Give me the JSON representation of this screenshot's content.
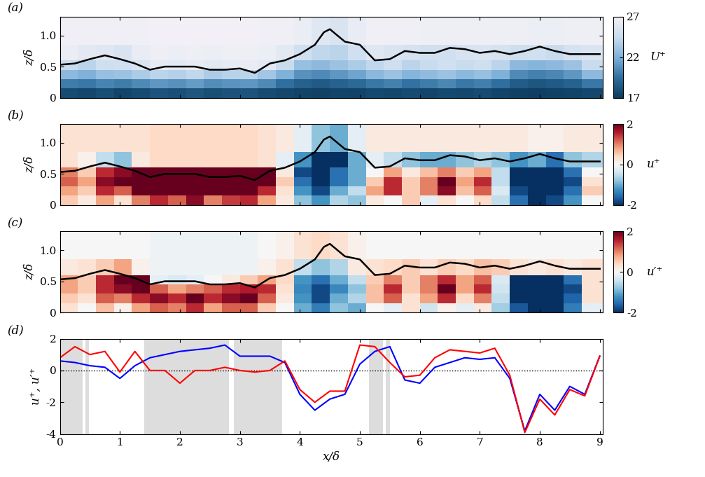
{
  "chart_data": [
    {
      "type": "heatmap",
      "panel": "(a)",
      "ylabel": "z/δ",
      "tick_labels": "y",
      "xlim": [
        0,
        9.05
      ],
      "xticks": [
        0,
        1,
        2,
        3,
        4,
        5,
        6,
        7,
        8,
        9
      ],
      "ylim": [
        0,
        1.3
      ],
      "yticks": [
        0,
        0.5,
        1.0
      ],
      "x_edges": [
        0,
        0.3,
        0.6,
        0.9,
        1.2,
        1.5,
        1.8,
        2.1,
        2.4,
        2.7,
        3.0,
        3.3,
        3.6,
        3.9,
        4.2,
        4.5,
        4.8,
        5.1,
        5.4,
        5.7,
        6.0,
        6.3,
        6.6,
        6.9,
        7.2,
        7.5,
        7.8,
        8.1,
        8.4,
        8.7,
        9.05
      ],
      "y_edges": [
        0,
        0.15,
        0.3,
        0.45,
        0.6,
        0.85,
        1.3
      ],
      "cells": [
        [
          17.8,
          17.6,
          17.9,
          17.5,
          17.8,
          18.2,
          18.0,
          18.3,
          17.9,
          18.1,
          18.2,
          17.8,
          17.6,
          17.4,
          17.3,
          17.5,
          17.4,
          17.7,
          17.6,
          17.8,
          17.5,
          17.7,
          17.6,
          17.8,
          17.5,
          17.3,
          17.2,
          17.3,
          17.4,
          17.6
        ],
        [
          20.0,
          19.8,
          20.3,
          20.0,
          20.5,
          21.0,
          20.8,
          21.2,
          20.6,
          20.9,
          21.0,
          20.5,
          19.5,
          18.8,
          18.5,
          18.9,
          19.2,
          19.8,
          20.2,
          19.6,
          20.0,
          20.4,
          19.8,
          20.1,
          19.5,
          18.6,
          18.3,
          18.5,
          18.9,
          19.8
        ],
        [
          22.5,
          22.0,
          22.8,
          23.0,
          23.5,
          24.0,
          23.8,
          24.2,
          23.6,
          23.9,
          24.0,
          23.2,
          22.0,
          20.8,
          20.5,
          21.0,
          21.5,
          22.4,
          23.0,
          22.2,
          22.6,
          23.0,
          22.4,
          22.8,
          22.0,
          20.5,
          20.2,
          20.4,
          21.0,
          22.5
        ],
        [
          24.5,
          24.0,
          24.8,
          25.0,
          25.5,
          26.2,
          26.0,
          26.3,
          26.0,
          26.2,
          26.4,
          26.0,
          24.5,
          22.8,
          22.5,
          23.0,
          23.5,
          24.2,
          24.8,
          24.0,
          24.5,
          25.0,
          24.5,
          24.8,
          24.0,
          22.5,
          22.2,
          22.5,
          23.0,
          24.5
        ],
        [
          26.5,
          26.0,
          25.8,
          25.5,
          26.4,
          26.7,
          26.6,
          26.7,
          26.6,
          26.7,
          26.7,
          26.6,
          26.0,
          25.0,
          24.2,
          24.0,
          25.0,
          25.8,
          25.5,
          25.2,
          25.0,
          25.0,
          25.3,
          25.5,
          25.2,
          24.8,
          25.0,
          24.5,
          25.2,
          25.5
        ],
        [
          26.8,
          26.8,
          26.8,
          26.8,
          26.8,
          26.9,
          26.9,
          26.9,
          26.9,
          26.9,
          26.9,
          26.8,
          26.8,
          26.5,
          25.8,
          25.5,
          26.4,
          26.8,
          26.8,
          26.8,
          26.7,
          26.7,
          26.7,
          26.7,
          26.7,
          26.7,
          26.6,
          26.6,
          26.7,
          26.7
        ]
      ],
      "colorbar": {
        "label": "U⁺",
        "range": [
          17,
          27
        ],
        "ticks": [
          17,
          22,
          27
        ]
      },
      "contour": {
        "color": "#000000",
        "x": [
          0,
          0.25,
          0.5,
          0.75,
          1.0,
          1.25,
          1.5,
          1.75,
          2.0,
          2.25,
          2.5,
          2.75,
          3.0,
          3.25,
          3.5,
          3.75,
          4.0,
          4.25,
          4.4,
          4.5,
          4.75,
          5.0,
          5.25,
          5.5,
          5.75,
          6.0,
          6.25,
          6.5,
          6.75,
          7.0,
          7.25,
          7.5,
          7.75,
          8.0,
          8.25,
          8.5,
          8.75,
          9.0
        ],
        "y": [
          0.53,
          0.55,
          0.62,
          0.68,
          0.62,
          0.55,
          0.45,
          0.5,
          0.5,
          0.5,
          0.45,
          0.45,
          0.47,
          0.4,
          0.55,
          0.6,
          0.7,
          0.85,
          1.05,
          1.1,
          0.9,
          0.85,
          0.6,
          0.62,
          0.75,
          0.72,
          0.72,
          0.8,
          0.78,
          0.72,
          0.75,
          0.7,
          0.75,
          0.82,
          0.75,
          0.7,
          0.7,
          0.7
        ]
      }
    },
    {
      "type": "heatmap",
      "panel": "(b)",
      "ylabel": "z/δ",
      "tick_labels": "y",
      "xlim": [
        0,
        9.05
      ],
      "xticks": [
        0,
        1,
        2,
        3,
        4,
        5,
        6,
        7,
        8,
        9
      ],
      "ylim": [
        0,
        1.3
      ],
      "yticks": [
        0,
        0.5,
        1.0
      ],
      "x_edges": [
        0,
        0.3,
        0.6,
        0.9,
        1.2,
        1.5,
        1.8,
        2.1,
        2.4,
        2.7,
        3.0,
        3.3,
        3.6,
        3.9,
        4.2,
        4.5,
        4.8,
        5.1,
        5.4,
        5.7,
        6.0,
        6.3,
        6.6,
        6.9,
        7.2,
        7.5,
        7.8,
        8.1,
        8.4,
        8.7,
        9.05
      ],
      "y_edges": [
        0,
        0.15,
        0.3,
        0.45,
        0.6,
        0.85,
        1.3
      ],
      "cells": [
        [
          0.5,
          0.2,
          0.8,
          0.3,
          1.0,
          1.5,
          1.2,
          1.8,
          1.0,
          1.4,
          1.5,
          0.8,
          0.2,
          -0.8,
          -1.2,
          -0.6,
          -0.8,
          0.2,
          0.0,
          0.5,
          -0.2,
          0.3,
          0.0,
          0.4,
          -0.5,
          -1.5,
          -2.0,
          -1.8,
          -1.2,
          0.0
        ],
        [
          0.8,
          0.5,
          1.5,
          1.2,
          2.0,
          2.5,
          2.2,
          2.8,
          2.0,
          2.5,
          2.6,
          1.5,
          0.3,
          -1.2,
          -1.8,
          -1.0,
          -0.5,
          0.8,
          1.5,
          0.5,
          1.0,
          1.8,
          0.6,
          1.2,
          -0.3,
          -1.8,
          -2.5,
          -2.2,
          -1.5,
          0.5
        ],
        [
          1.2,
          0.8,
          1.8,
          2.0,
          2.5,
          3.0,
          2.8,
          3.0,
          2.8,
          3.0,
          3.0,
          2.2,
          0.5,
          -1.5,
          -2.0,
          -1.5,
          -1.0,
          0.5,
          1.5,
          0.5,
          1.0,
          2.0,
          0.8,
          1.5,
          -0.5,
          -2.2,
          -2.8,
          -2.5,
          -1.8,
          0.3
        ],
        [
          1.0,
          0.5,
          1.5,
          1.8,
          2.5,
          3.0,
          3.0,
          3.0,
          3.0,
          3.0,
          3.0,
          2.5,
          0.2,
          -1.8,
          -2.2,
          -1.5,
          -1.0,
          0.0,
          0.8,
          0.2,
          0.6,
          1.0,
          0.5,
          0.8,
          -0.5,
          -2.0,
          -2.5,
          -2.2,
          -1.5,
          0.0
        ],
        [
          0.3,
          0.1,
          -0.5,
          -0.8,
          0.2,
          0.4,
          0.4,
          0.4,
          0.4,
          0.4,
          0.4,
          0.3,
          -0.2,
          -1.2,
          -2.0,
          -2.0,
          -1.0,
          -0.2,
          -0.5,
          -0.8,
          -1.0,
          -1.0,
          -0.8,
          -0.6,
          -0.8,
          -1.2,
          -1.0,
          -1.5,
          -0.8,
          -0.6
        ],
        [
          0.3,
          0.3,
          0.3,
          0.3,
          0.3,
          0.4,
          0.4,
          0.4,
          0.4,
          0.4,
          0.4,
          0.3,
          0.2,
          -0.2,
          -0.8,
          -1.0,
          -0.2,
          0.2,
          0.2,
          0.2,
          0.2,
          0.2,
          0.2,
          0.2,
          0.2,
          0.2,
          0.1,
          0.1,
          0.2,
          0.2
        ]
      ],
      "colorbar": {
        "label": "u⁺",
        "range": [
          -2,
          2
        ],
        "ticks": [
          -2,
          0,
          2
        ]
      },
      "contour": {
        "color": "#000000",
        "x": [
          0,
          0.25,
          0.5,
          0.75,
          1.0,
          1.25,
          1.5,
          1.75,
          2.0,
          2.25,
          2.5,
          2.75,
          3.0,
          3.25,
          3.5,
          3.75,
          4.0,
          4.25,
          4.4,
          4.5,
          4.75,
          5.0,
          5.25,
          5.5,
          5.75,
          6.0,
          6.25,
          6.5,
          6.75,
          7.0,
          7.25,
          7.5,
          7.75,
          8.0,
          8.25,
          8.5,
          8.75,
          9.0
        ],
        "y": [
          0.53,
          0.55,
          0.62,
          0.68,
          0.62,
          0.55,
          0.45,
          0.5,
          0.5,
          0.5,
          0.45,
          0.45,
          0.47,
          0.4,
          0.55,
          0.6,
          0.7,
          0.85,
          1.05,
          1.1,
          0.9,
          0.85,
          0.6,
          0.62,
          0.75,
          0.72,
          0.72,
          0.8,
          0.78,
          0.72,
          0.75,
          0.7,
          0.75,
          0.82,
          0.75,
          0.7,
          0.7,
          0.7
        ]
      }
    },
    {
      "type": "heatmap",
      "panel": "(c)",
      "ylabel": "z/δ",
      "tick_labels": "y",
      "xlim": [
        0,
        9.05
      ],
      "xticks": [
        0,
        1,
        2,
        3,
        4,
        5,
        6,
        7,
        8,
        9
      ],
      "ylim": [
        0,
        1.3
      ],
      "yticks": [
        0,
        0.5,
        1.0
      ],
      "x_edges": [
        0,
        0.3,
        0.6,
        0.9,
        1.2,
        1.5,
        1.8,
        2.1,
        2.4,
        2.7,
        3.0,
        3.3,
        3.6,
        3.9,
        4.2,
        4.5,
        4.8,
        5.1,
        5.4,
        5.7,
        6.0,
        6.3,
        6.6,
        6.9,
        7.2,
        7.5,
        7.8,
        8.1,
        8.4,
        8.7,
        9.05
      ],
      "y_edges": [
        0,
        0.15,
        0.3,
        0.45,
        0.6,
        0.85,
        1.3
      ],
      "cells": [
        [
          0.3,
          0.0,
          0.6,
          0.1,
          0.8,
          1.2,
          1.0,
          1.5,
          0.8,
          1.2,
          1.2,
          0.5,
          0.0,
          -1.0,
          -1.4,
          -0.8,
          -1.0,
          0.0,
          -0.2,
          0.3,
          -0.4,
          0.1,
          -0.2,
          0.2,
          -0.7,
          -1.7,
          -2.2,
          -2.0,
          -1.4,
          -0.2
        ],
        [
          0.5,
          0.3,
          1.2,
          1.0,
          1.5,
          1.8,
          1.5,
          2.0,
          1.5,
          1.8,
          2.0,
          1.2,
          0.2,
          -1.2,
          -1.8,
          -1.0,
          -0.6,
          0.6,
          1.2,
          0.3,
          0.8,
          1.5,
          0.4,
          1.0,
          -0.5,
          -2.0,
          -2.5,
          -2.2,
          -1.6,
          0.3
        ],
        [
          0.8,
          0.5,
          1.5,
          1.8,
          2.2,
          1.2,
          0.8,
          1.0,
          1.2,
          1.5,
          1.6,
          1.5,
          0.3,
          -1.3,
          -1.8,
          -1.3,
          -0.8,
          0.6,
          1.5,
          0.5,
          1.0,
          2.0,
          0.8,
          1.5,
          -0.4,
          -2.2,
          -2.8,
          -2.5,
          -1.8,
          0.3
        ],
        [
          0.8,
          0.5,
          1.5,
          2.0,
          2.5,
          -0.2,
          -0.3,
          -0.2,
          0.0,
          0.2,
          0.5,
          0.8,
          0.4,
          -1.2,
          -1.5,
          -1.0,
          -0.5,
          0.5,
          1.0,
          0.5,
          1.0,
          1.5,
          0.8,
          1.2,
          -0.3,
          -2.0,
          -2.5,
          -2.2,
          -1.5,
          0.3
        ],
        [
          0.2,
          0.3,
          0.5,
          0.8,
          0.1,
          -0.1,
          -0.1,
          -0.1,
          -0.1,
          -0.1,
          -0.1,
          0.1,
          0.3,
          -0.5,
          -0.8,
          -0.6,
          0.2,
          0.3,
          0.4,
          0.5,
          0.3,
          0.5,
          0.4,
          0.6,
          0.5,
          0.3,
          0.2,
          0.3,
          0.2,
          0.3
        ],
        [
          0.0,
          0.0,
          0.0,
          0.0,
          0.0,
          -0.1,
          -0.1,
          -0.1,
          -0.1,
          -0.1,
          -0.1,
          0.0,
          0.1,
          0.3,
          0.4,
          0.3,
          0.1,
          0.0,
          0.0,
          0.0,
          0.0,
          0.0,
          0.0,
          0.0,
          0.0,
          0.0,
          0.0,
          0.0,
          0.0,
          0.0
        ]
      ],
      "colorbar": {
        "label": "u′⁺",
        "range": [
          -2,
          2
        ],
        "ticks": [
          -2,
          0,
          2
        ]
      },
      "contour": {
        "color": "#000000",
        "x": [
          0,
          0.25,
          0.5,
          0.75,
          1.0,
          1.25,
          1.5,
          1.75,
          2.0,
          2.25,
          2.5,
          2.75,
          3.0,
          3.25,
          3.5,
          3.75,
          4.0,
          4.25,
          4.4,
          4.5,
          4.75,
          5.0,
          5.25,
          5.5,
          5.75,
          6.0,
          6.25,
          6.5,
          6.75,
          7.0,
          7.25,
          7.5,
          7.75,
          8.0,
          8.25,
          8.5,
          8.75,
          9.0
        ],
        "y": [
          0.53,
          0.55,
          0.62,
          0.68,
          0.62,
          0.55,
          0.45,
          0.5,
          0.5,
          0.5,
          0.45,
          0.45,
          0.47,
          0.4,
          0.55,
          0.6,
          0.7,
          0.85,
          1.05,
          1.1,
          0.9,
          0.85,
          0.6,
          0.62,
          0.75,
          0.72,
          0.72,
          0.8,
          0.78,
          0.72,
          0.75,
          0.7,
          0.75,
          0.82,
          0.75,
          0.7,
          0.7,
          0.7
        ]
      }
    },
    {
      "type": "line",
      "panel": "(d)",
      "xlabel": "x/δ",
      "ylabel": "u⁺, u′⁺",
      "xlim": [
        0,
        9.05
      ],
      "xticks": [
        0,
        1,
        2,
        3,
        4,
        5,
        6,
        7,
        8,
        9
      ],
      "ylim": [
        -4,
        2
      ],
      "yticks": [
        -4,
        -2,
        0,
        2
      ],
      "x": [
        0,
        0.25,
        0.5,
        0.75,
        1.0,
        1.25,
        1.5,
        1.75,
        2.0,
        2.25,
        2.5,
        2.75,
        3.0,
        3.25,
        3.5,
        3.75,
        4.0,
        4.25,
        4.5,
        4.75,
        5.0,
        5.25,
        5.5,
        5.75,
        6.0,
        6.25,
        6.5,
        6.75,
        7.0,
        7.25,
        7.5,
        7.75,
        8.0,
        8.25,
        8.5,
        8.75,
        9.0
      ],
      "series": [
        {
          "color": "#0000ff",
          "values": [
            0.6,
            0.5,
            0.3,
            0.2,
            -0.5,
            0.3,
            0.8,
            1.0,
            1.2,
            1.3,
            1.4,
            1.6,
            0.9,
            0.9,
            0.9,
            0.5,
            -1.5,
            -2.5,
            -1.8,
            -1.5,
            0.4,
            1.2,
            1.5,
            -0.6,
            -0.8,
            0.2,
            0.5,
            0.8,
            0.7,
            0.8,
            -0.5,
            -3.8,
            -1.5,
            -2.5,
            -1.0,
            -1.5,
            0.9
          ]
        },
        {
          "color": "#ff0000",
          "values": [
            0.8,
            1.5,
            1.0,
            1.2,
            -0.1,
            1.2,
            0.0,
            0.0,
            -0.8,
            0.0,
            0.0,
            0.2,
            0.0,
            -0.1,
            0.0,
            0.6,
            -1.2,
            -2.0,
            -1.3,
            -1.3,
            1.6,
            1.5,
            0.5,
            -0.4,
            -0.3,
            0.8,
            1.3,
            1.2,
            1.1,
            1.4,
            -0.3,
            -3.9,
            -1.8,
            -2.8,
            -1.2,
            -1.6,
            0.9
          ]
        }
      ],
      "shaded": [
        [
          0,
          0.38
        ],
        [
          0.42,
          0.48
        ],
        [
          1.4,
          2.82
        ],
        [
          2.9,
          3.7
        ],
        [
          5.15,
          5.38
        ],
        [
          5.43,
          5.5
        ]
      ],
      "reference_line": {
        "value": 0,
        "line_style": "dotted",
        "color": "#000000"
      }
    }
  ]
}
